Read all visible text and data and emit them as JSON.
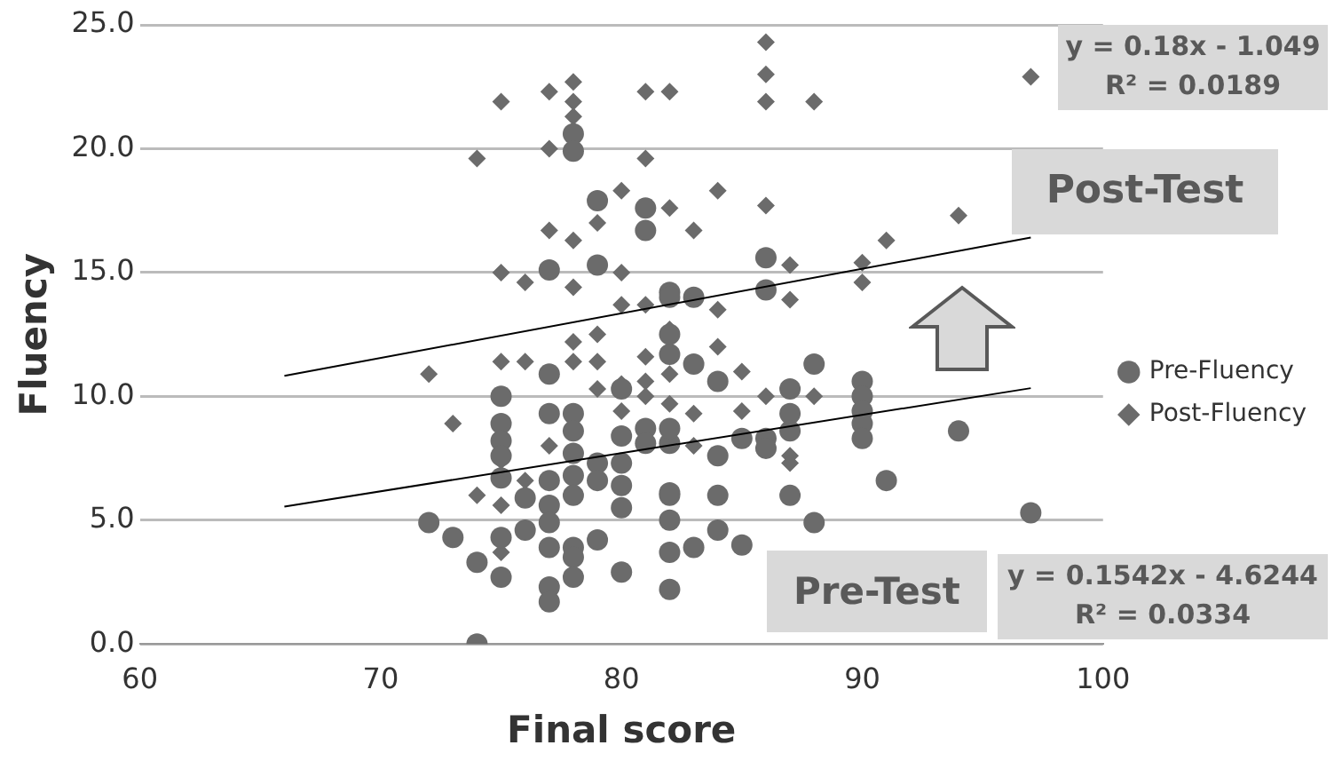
{
  "chart_data": {
    "type": "scatter",
    "xlabel": "Final score",
    "ylabel": "Fluency",
    "xlim": [
      60,
      100
    ],
    "xticks": [
      60,
      70,
      80,
      90,
      100
    ],
    "ylim": [
      0,
      25
    ],
    "yticks": [
      {
        "value": 0,
        "label": "0.0"
      },
      {
        "value": 5,
        "label": "5.0"
      },
      {
        "value": 10,
        "label": "10.0"
      },
      {
        "value": 15,
        "label": "15.0"
      },
      {
        "value": 20,
        "label": "20.0"
      },
      {
        "value": 25,
        "label": "25.0"
      }
    ],
    "grid": "y",
    "legend": "right",
    "annotations": [
      "y = 0.18x - 1.049\nR² = 0.0189",
      "Post-Test",
      "Pre-Test",
      "y = 0.1542x - 4.6244\nR² = 0.0334"
    ],
    "series": [
      {
        "name": "Pre-Fluency",
        "color": "#6b6b6b",
        "marker": "circle",
        "x": [
          78,
          78,
          79,
          81,
          81,
          77,
          79,
          82,
          86,
          86,
          82,
          83,
          82,
          82,
          83,
          84,
          88,
          87,
          87,
          87,
          90,
          90,
          90,
          90,
          90,
          94,
          86,
          86,
          85,
          84,
          82,
          91,
          87,
          82,
          84,
          82,
          88,
          97,
          84,
          83,
          85,
          82,
          82,
          77,
          75,
          77,
          78,
          75,
          75,
          75,
          75,
          78,
          78,
          78,
          78,
          79,
          79,
          80,
          80,
          80,
          80,
          80,
          81,
          81,
          82,
          77,
          77,
          77,
          76,
          76,
          72,
          73,
          74,
          75,
          75,
          77,
          78,
          78,
          79,
          80,
          77,
          77,
          78,
          82,
          74
        ],
        "values": [
          20.6,
          19.9,
          17.9,
          17.6,
          16.7,
          15.1,
          15.3,
          14.2,
          15.6,
          14.3,
          14.0,
          14.0,
          12.5,
          11.7,
          11.3,
          10.6,
          11.3,
          10.3,
          9.3,
          8.6,
          10.6,
          10.0,
          9.4,
          8.9,
          8.3,
          8.6,
          8.3,
          7.9,
          8.3,
          7.6,
          8.1,
          6.6,
          6.0,
          6.0,
          6.0,
          5.0,
          4.9,
          5.3,
          4.6,
          3.9,
          4.0,
          3.7,
          2.2,
          10.9,
          10.0,
          9.3,
          9.3,
          8.9,
          8.2,
          7.6,
          6.7,
          8.6,
          7.7,
          6.8,
          6.0,
          7.3,
          6.6,
          10.3,
          8.4,
          7.3,
          6.4,
          5.5,
          8.7,
          8.1,
          8.7,
          6.6,
          5.6,
          4.9,
          5.9,
          4.6,
          4.9,
          4.3,
          3.3,
          4.3,
          2.7,
          3.9,
          3.9,
          3.5,
          4.2,
          2.9,
          2.3,
          1.7,
          2.7,
          6.1,
          0.0
        ]
      },
      {
        "name": "Post-Fluency",
        "color": "#6b6b6b",
        "marker": "diamond",
        "x": [
          75,
          77,
          78,
          78,
          78,
          74,
          77,
          81,
          82,
          81,
          80,
          79,
          77,
          78,
          75,
          76,
          78,
          80,
          80,
          81,
          86,
          86,
          86,
          88,
          97,
          84,
          82,
          83,
          86,
          94,
          91,
          87,
          90,
          90,
          87,
          84,
          84,
          85,
          86,
          88,
          83,
          85,
          83,
          87,
          87,
          82,
          82,
          82,
          72,
          73,
          74,
          75,
          76,
          78,
          78,
          79,
          79,
          81,
          81,
          81,
          80,
          80,
          79,
          77,
          75,
          76,
          75,
          75
        ],
        "values": [
          21.9,
          22.3,
          22.7,
          21.9,
          21.3,
          19.6,
          20.0,
          22.3,
          22.3,
          19.6,
          18.3,
          17.0,
          16.7,
          16.3,
          15.0,
          14.6,
          14.4,
          15.0,
          13.7,
          13.7,
          24.3,
          23.0,
          21.9,
          21.9,
          22.9,
          18.3,
          17.6,
          16.7,
          17.7,
          17.3,
          16.3,
          15.3,
          15.4,
          14.6,
          13.9,
          13.5,
          12.0,
          11.0,
          10.0,
          10.0,
          9.3,
          9.4,
          8.0,
          7.6,
          7.3,
          12.7,
          10.9,
          9.7,
          10.9,
          8.9,
          6.0,
          11.4,
          11.4,
          11.4,
          12.2,
          12.5,
          11.4,
          11.6,
          10.6,
          10.0,
          10.5,
          9.4,
          10.3,
          8.0,
          7.4,
          6.6,
          5.6,
          3.7
        ]
      },
      {
        "type": "line",
        "color": "#000000",
        "x": [
          66,
          97
        ],
        "values": [
          10.83,
          16.41
        ]
      },
      {
        "type": "line",
        "color": "#000000",
        "x": [
          66,
          97
        ],
        "values": [
          5.55,
          10.33
        ]
      }
    ]
  }
}
